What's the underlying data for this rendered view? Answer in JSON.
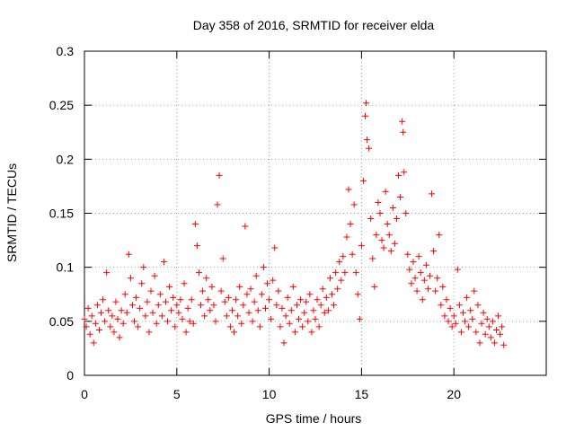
{
  "chart_data": {
    "type": "scatter",
    "title": "Day 358 of 2016, SRMTID for receiver elda",
    "xlabel": "GPS time / hours",
    "ylabel": "SRMTID / TECUs",
    "xlim": [
      0,
      25
    ],
    "ylim": [
      0,
      0.3
    ],
    "xticks": [
      0,
      5,
      10,
      15,
      20
    ],
    "yticks": [
      0,
      0.05,
      0.1,
      0.15,
      0.2,
      0.25,
      0.3
    ],
    "xtick_labels": [
      "0",
      "5",
      "10",
      "15",
      "20"
    ],
    "ytick_labels": [
      "0",
      "0.05",
      "0.1",
      "0.15",
      "0.2",
      "0.25",
      "0.3"
    ],
    "grid": true,
    "marker": "+",
    "color": "#ff0000",
    "series": [
      {
        "name": "SRMTID",
        "points": [
          [
            0.0,
            0.052
          ],
          [
            0.1,
            0.045
          ],
          [
            0.2,
            0.062
          ],
          [
            0.3,
            0.038
          ],
          [
            0.4,
            0.055
          ],
          [
            0.5,
            0.03
          ],
          [
            0.6,
            0.048
          ],
          [
            0.7,
            0.065
          ],
          [
            0.8,
            0.042
          ],
          [
            0.9,
            0.058
          ],
          [
            1.0,
            0.07
          ],
          [
            1.1,
            0.05
          ],
          [
            1.2,
            0.095
          ],
          [
            1.3,
            0.06
          ],
          [
            1.4,
            0.045
          ],
          [
            1.5,
            0.055
          ],
          [
            1.6,
            0.04
          ],
          [
            1.7,
            0.068
          ],
          [
            1.8,
            0.052
          ],
          [
            1.9,
            0.035
          ],
          [
            2.0,
            0.06
          ],
          [
            2.1,
            0.048
          ],
          [
            2.2,
            0.075
          ],
          [
            2.3,
            0.058
          ],
          [
            2.4,
            0.112
          ],
          [
            2.5,
            0.09
          ],
          [
            2.6,
            0.065
          ],
          [
            2.7,
            0.05
          ],
          [
            2.8,
            0.072
          ],
          [
            2.9,
            0.045
          ],
          [
            3.0,
            0.062
          ],
          [
            3.1,
            0.085
          ],
          [
            3.2,
            0.1
          ],
          [
            3.3,
            0.055
          ],
          [
            3.4,
            0.068
          ],
          [
            3.5,
            0.04
          ],
          [
            3.6,
            0.078
          ],
          [
            3.7,
            0.058
          ],
          [
            3.8,
            0.092
          ],
          [
            3.9,
            0.048
          ],
          [
            4.0,
            0.065
          ],
          [
            4.1,
            0.075
          ],
          [
            4.2,
            0.055
          ],
          [
            4.3,
            0.105
          ],
          [
            4.4,
            0.068
          ],
          [
            4.5,
            0.05
          ],
          [
            4.6,
            0.082
          ],
          [
            4.7,
            0.06
          ],
          [
            4.8,
            0.072
          ],
          [
            4.9,
            0.045
          ],
          [
            5.0,
            0.065
          ],
          [
            5.1,
            0.058
          ],
          [
            5.2,
            0.07
          ],
          [
            5.3,
            0.052
          ],
          [
            5.4,
            0.085
          ],
          [
            5.5,
            0.04
          ],
          [
            5.6,
            0.062
          ],
          [
            5.7,
            0.05
          ],
          [
            5.8,
            0.07
          ],
          [
            5.9,
            0.048
          ],
          [
            6.0,
            0.14
          ],
          [
            6.1,
            0.12
          ],
          [
            6.2,
            0.095
          ],
          [
            6.3,
            0.065
          ],
          [
            6.4,
            0.078
          ],
          [
            6.5,
            0.055
          ],
          [
            6.6,
            0.09
          ],
          [
            6.7,
            0.07
          ],
          [
            6.8,
            0.06
          ],
          [
            6.9,
            0.082
          ],
          [
            7.0,
            0.065
          ],
          [
            7.1,
            0.05
          ],
          [
            7.2,
            0.158
          ],
          [
            7.3,
            0.185
          ],
          [
            7.4,
            0.078
          ],
          [
            7.5,
            0.108
          ],
          [
            7.6,
            0.068
          ],
          [
            7.7,
            0.055
          ],
          [
            7.8,
            0.072
          ],
          [
            7.9,
            0.045
          ],
          [
            8.0,
            0.06
          ],
          [
            8.1,
            0.04
          ],
          [
            8.2,
            0.07
          ],
          [
            8.3,
            0.055
          ],
          [
            8.4,
            0.082
          ],
          [
            8.5,
            0.048
          ],
          [
            8.6,
            0.065
          ],
          [
            8.7,
            0.138
          ],
          [
            8.8,
            0.075
          ],
          [
            8.9,
            0.058
          ],
          [
            9.0,
            0.08
          ],
          [
            9.1,
            0.05
          ],
          [
            9.2,
            0.068
          ],
          [
            9.3,
            0.092
          ],
          [
            9.4,
            0.06
          ],
          [
            9.5,
            0.045
          ],
          [
            9.6,
            0.075
          ],
          [
            9.7,
            0.1
          ],
          [
            9.8,
            0.062
          ],
          [
            9.9,
            0.085
          ],
          [
            10.0,
            0.07
          ],
          [
            10.1,
            0.052
          ],
          [
            10.2,
            0.088
          ],
          [
            10.3,
            0.118
          ],
          [
            10.4,
            0.065
          ],
          [
            10.5,
            0.078
          ],
          [
            10.6,
            0.045
          ],
          [
            10.7,
            0.062
          ],
          [
            10.8,
            0.03
          ],
          [
            10.9,
            0.055
          ],
          [
            11.0,
            0.072
          ],
          [
            11.1,
            0.048
          ],
          [
            11.2,
            0.06
          ],
          [
            11.3,
            0.082
          ],
          [
            11.4,
            0.04
          ],
          [
            11.5,
            0.065
          ],
          [
            11.6,
            0.052
          ],
          [
            11.7,
            0.07
          ],
          [
            11.8,
            0.045
          ],
          [
            11.9,
            0.058
          ],
          [
            12.0,
            0.068
          ],
          [
            12.1,
            0.05
          ],
          [
            12.2,
            0.075
          ],
          [
            12.3,
            0.04
          ],
          [
            12.4,
            0.06
          ],
          [
            12.5,
            0.052
          ],
          [
            12.6,
            0.07
          ],
          [
            12.7,
            0.045
          ],
          [
            12.8,
            0.065
          ],
          [
            12.9,
            0.08
          ],
          [
            13.0,
            0.058
          ],
          [
            13.1,
            0.072
          ],
          [
            13.2,
            0.06
          ],
          [
            13.3,
            0.09
          ],
          [
            13.4,
            0.075
          ],
          [
            13.5,
            0.065
          ],
          [
            13.6,
            0.095
          ],
          [
            13.7,
            0.08
          ],
          [
            13.8,
            0.105
          ],
          [
            13.9,
            0.088
          ],
          [
            14.0,
            0.11
          ],
          [
            14.1,
            0.095
          ],
          [
            14.2,
            0.128
          ],
          [
            14.3,
            0.172
          ],
          [
            14.4,
            0.14
          ],
          [
            14.5,
            0.112
          ],
          [
            14.6,
            0.158
          ],
          [
            14.7,
            0.095
          ],
          [
            14.8,
            0.075
          ],
          [
            14.9,
            0.052
          ],
          [
            15.0,
            0.12
          ],
          [
            15.1,
            0.18
          ],
          [
            15.2,
            0.24
          ],
          [
            15.25,
            0.252
          ],
          [
            15.3,
            0.218
          ],
          [
            15.4,
            0.21
          ],
          [
            15.5,
            0.145
          ],
          [
            15.6,
            0.108
          ],
          [
            15.7,
            0.082
          ],
          [
            15.8,
            0.13
          ],
          [
            15.9,
            0.16
          ],
          [
            16.0,
            0.15
          ],
          [
            16.1,
            0.125
          ],
          [
            16.2,
            0.118
          ],
          [
            16.3,
            0.17
          ],
          [
            16.4,
            0.14
          ],
          [
            16.5,
            0.13
          ],
          [
            16.6,
            0.115
          ],
          [
            16.7,
            0.155
          ],
          [
            16.8,
            0.122
          ],
          [
            16.9,
            0.145
          ],
          [
            17.0,
            0.185
          ],
          [
            17.1,
            0.165
          ],
          [
            17.2,
            0.235
          ],
          [
            17.25,
            0.225
          ],
          [
            17.3,
            0.188
          ],
          [
            17.4,
            0.15
          ],
          [
            17.5,
            0.112
          ],
          [
            17.6,
            0.098
          ],
          [
            17.7,
            0.085
          ],
          [
            17.8,
            0.105
          ],
          [
            17.9,
            0.09
          ],
          [
            18.0,
            0.078
          ],
          [
            18.1,
            0.11
          ],
          [
            18.2,
            0.095
          ],
          [
            18.3,
            0.07
          ],
          [
            18.4,
            0.088
          ],
          [
            18.5,
            0.102
          ],
          [
            18.6,
            0.08
          ],
          [
            18.7,
            0.092
          ],
          [
            18.8,
            0.168
          ],
          [
            18.9,
            0.115
          ],
          [
            19.0,
            0.078
          ],
          [
            19.1,
            0.09
          ],
          [
            19.2,
            0.13
          ],
          [
            19.3,
            0.065
          ],
          [
            19.4,
            0.082
          ],
          [
            19.5,
            0.055
          ],
          [
            19.6,
            0.07
          ],
          [
            19.7,
            0.05
          ],
          [
            19.8,
            0.062
          ],
          [
            19.9,
            0.045
          ],
          [
            20.0,
            0.055
          ],
          [
            20.1,
            0.048
          ],
          [
            20.2,
            0.098
          ],
          [
            20.3,
            0.065
          ],
          [
            20.4,
            0.04
          ],
          [
            20.5,
            0.058
          ],
          [
            20.6,
            0.05
          ],
          [
            20.7,
            0.072
          ],
          [
            20.8,
            0.045
          ],
          [
            20.9,
            0.06
          ],
          [
            21.0,
            0.052
          ],
          [
            21.1,
            0.078
          ],
          [
            21.2,
            0.04
          ],
          [
            21.3,
            0.065
          ],
          [
            21.4,
            0.03
          ],
          [
            21.5,
            0.048
          ],
          [
            21.6,
            0.058
          ],
          [
            21.7,
            0.038
          ],
          [
            21.8,
            0.052
          ],
          [
            21.9,
            0.045
          ],
          [
            22.0,
            0.035
          ],
          [
            22.1,
            0.05
          ],
          [
            22.2,
            0.03
          ],
          [
            22.3,
            0.042
          ],
          [
            22.4,
            0.055
          ],
          [
            22.5,
            0.038
          ],
          [
            22.6,
            0.045
          ],
          [
            22.7,
            0.028
          ]
        ]
      }
    ]
  }
}
